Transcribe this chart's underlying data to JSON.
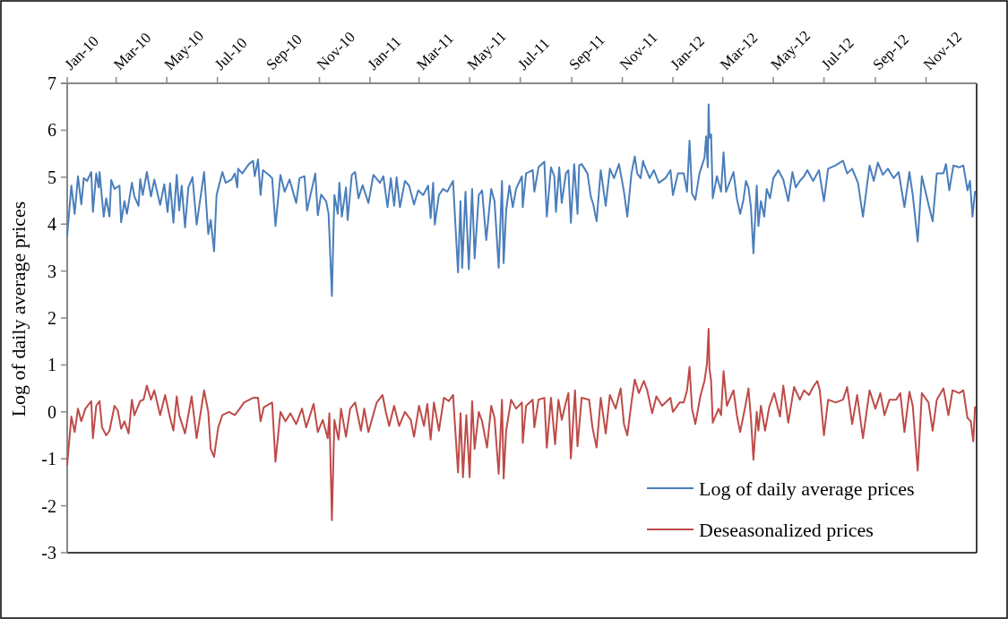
{
  "chart_data": {
    "type": "line",
    "ylabel": "Log of daily average prices",
    "xlim": [
      "2010-01-01",
      "2013-01-01"
    ],
    "ylim": [
      -3,
      7
    ],
    "yticks": [
      -3,
      -2,
      -1,
      0,
      1,
      2,
      3,
      4,
      5,
      6,
      7
    ],
    "xticks": [
      {
        "value": "2010-01-01",
        "label": "Jan-10"
      },
      {
        "value": "2010-03-01",
        "label": "Mar-10"
      },
      {
        "value": "2010-05-01",
        "label": "May-10"
      },
      {
        "value": "2010-07-01",
        "label": "Jul-10"
      },
      {
        "value": "2010-09-01",
        "label": "Sep-10"
      },
      {
        "value": "2010-11-01",
        "label": "Nov-10"
      },
      {
        "value": "2011-01-01",
        "label": "Jan-11"
      },
      {
        "value": "2011-03-01",
        "label": "Mar-11"
      },
      {
        "value": "2011-05-01",
        "label": "May-11"
      },
      {
        "value": "2011-07-01",
        "label": "Jul-11"
      },
      {
        "value": "2011-09-01",
        "label": "Sep-11"
      },
      {
        "value": "2011-11-01",
        "label": "Nov-11"
      },
      {
        "value": "2012-01-01",
        "label": "Jan-12"
      },
      {
        "value": "2012-03-01",
        "label": "Mar-12"
      },
      {
        "value": "2012-05-01",
        "label": "May-12"
      },
      {
        "value": "2012-07-01",
        "label": "Jul-12"
      },
      {
        "value": "2012-09-01",
        "label": "Sep-12"
      },
      {
        "value": "2012-11-01",
        "label": "Nov-12"
      }
    ],
    "legend": "bottom right",
    "line_style": "solid",
    "series": [
      {
        "name": "Log of daily average prices",
        "color": "#4a7ebb",
        "x": [
          "2010-01-01",
          "2010-01-06",
          "2010-01-10",
          "2010-01-14",
          "2010-01-18",
          "2010-01-21",
          "2010-01-25",
          "2010-01-30",
          "2010-02-01",
          "2010-02-05",
          "2010-02-08",
          "2010-02-09",
          "2010-02-14",
          "2010-02-17",
          "2010-02-21",
          "2010-02-23",
          "2010-02-27",
          "2010-03-05",
          "2010-03-07",
          "2010-03-11",
          "2010-03-14",
          "2010-03-20",
          "2010-03-23",
          "2010-03-28",
          "2010-03-30",
          "2010-04-02",
          "2010-04-07",
          "2010-04-12",
          "2010-04-16",
          "2010-04-23",
          "2010-04-28",
          "2010-05-02",
          "2010-05-05",
          "2010-05-09",
          "2010-05-13",
          "2010-05-16",
          "2010-05-19",
          "2010-05-23",
          "2010-05-27",
          "2010-06-01",
          "2010-06-06",
          "2010-06-15",
          "2010-06-20",
          "2010-06-23",
          "2010-06-27",
          "2010-06-30",
          "2010-07-07",
          "2010-07-11",
          "2010-07-18",
          "2010-07-22",
          "2010-07-25",
          "2010-07-26",
          "2010-07-31",
          "2010-08-08",
          "2010-08-13",
          "2010-08-15",
          "2010-08-19",
          "2010-08-22",
          "2010-08-25",
          "2010-09-01",
          "2010-09-05",
          "2010-09-09",
          "2010-09-15",
          "2010-09-20",
          "2010-09-26",
          "2010-10-04",
          "2010-10-08",
          "2010-10-14",
          "2010-10-17",
          "2010-10-27",
          "2010-10-30",
          "2010-11-03",
          "2010-11-09",
          "2010-11-12",
          "2010-11-16",
          "2010-11-19",
          "2010-11-23",
          "2010-11-25",
          "2010-11-28",
          "2010-12-03",
          "2010-12-05",
          "2010-12-10",
          "2010-12-14",
          "2010-12-18",
          "2010-12-23",
          "2010-12-30",
          "2011-01-05",
          "2011-01-13",
          "2011-01-17",
          "2011-01-22",
          "2011-01-26",
          "2011-01-30",
          "2011-02-02",
          "2011-02-06",
          "2011-02-12",
          "2011-02-17",
          "2011-02-23",
          "2011-02-28",
          "2011-03-06",
          "2011-03-12",
          "2011-03-15",
          "2011-03-18",
          "2011-03-20",
          "2011-03-25",
          "2011-03-30",
          "2011-04-04",
          "2011-04-11",
          "2011-04-17",
          "2011-04-20",
          "2011-04-22",
          "2011-04-26",
          "2011-04-30",
          "2011-05-04",
          "2011-05-07",
          "2011-05-12",
          "2011-05-16",
          "2011-05-21",
          "2011-05-27",
          "2011-05-31",
          "2011-06-05",
          "2011-06-09",
          "2011-06-11",
          "2011-06-14",
          "2011-06-18",
          "2011-06-22",
          "2011-06-26",
          "2011-07-03",
          "2011-07-04",
          "2011-07-08",
          "2011-07-16",
          "2011-07-18",
          "2011-07-23",
          "2011-07-30",
          "2011-08-02",
          "2011-08-07",
          "2011-08-11",
          "2011-08-13",
          "2011-08-17",
          "2011-08-20",
          "2011-08-25",
          "2011-08-28",
          "2011-08-31",
          "2011-09-04",
          "2011-09-08",
          "2011-09-10",
          "2011-09-13",
          "2011-09-20",
          "2011-09-24",
          "2011-09-27",
          "2011-10-01",
          "2011-10-06",
          "2011-10-12",
          "2011-10-17",
          "2011-10-22",
          "2011-10-28",
          "2011-11-03",
          "2011-11-07",
          "2011-11-12",
          "2011-11-16",
          "2011-11-19",
          "2011-11-23",
          "2011-11-26",
          "2011-11-27",
          "2011-12-04",
          "2011-12-09",
          "2011-12-15",
          "2011-12-23",
          "2011-12-29",
          "2012-01-01",
          "2012-01-07",
          "2012-01-14",
          "2012-01-18",
          "2012-01-21",
          "2012-01-24",
          "2012-01-28",
          "2012-02-02",
          "2012-02-08",
          "2012-02-10",
          "2012-02-12",
          "2012-02-13",
          "2012-02-14",
          "2012-02-16",
          "2012-02-18",
          "2012-02-23",
          "2012-02-28",
          "2012-03-02",
          "2012-03-05",
          "2012-03-14",
          "2012-03-18",
          "2012-03-22",
          "2012-03-26",
          "2012-03-29",
          "2012-04-01",
          "2012-04-04",
          "2012-04-07",
          "2012-04-11",
          "2012-04-13",
          "2012-04-16",
          "2012-04-20",
          "2012-04-23",
          "2012-04-27",
          "2012-05-01",
          "2012-05-07",
          "2012-05-13",
          "2012-05-19",
          "2012-05-24",
          "2012-05-28",
          "2012-06-02",
          "2012-06-07",
          "2012-06-11",
          "2012-06-18",
          "2012-06-25",
          "2012-07-01",
          "2012-07-06",
          "2012-07-15",
          "2012-07-24",
          "2012-07-29",
          "2012-08-04",
          "2012-08-11",
          "2012-08-17",
          "2012-08-25",
          "2012-08-30",
          "2012-09-04",
          "2012-09-10",
          "2012-09-16",
          "2012-09-23",
          "2012-09-29",
          "2012-10-06",
          "2012-10-12",
          "2012-10-16",
          "2012-10-22",
          "2012-10-27",
          "2012-11-04",
          "2012-11-09",
          "2012-11-14",
          "2012-11-22",
          "2012-11-25",
          "2012-11-29",
          "2012-12-04",
          "2012-12-11",
          "2012-12-16",
          "2012-12-21",
          "2012-12-24",
          "2012-12-27",
          "2012-12-30"
        ],
        "values": [
          3.76,
          4.82,
          4.22,
          5.02,
          4.42,
          4.98,
          4.92,
          5.11,
          4.26,
          5.08,
          4.78,
          5.11,
          4.16,
          4.55,
          4.16,
          4.94,
          4.75,
          4.82,
          4.04,
          4.49,
          4.22,
          4.88,
          4.59,
          4.39,
          4.96,
          4.62,
          5.11,
          4.59,
          4.95,
          4.41,
          4.85,
          4.26,
          4.87,
          4.03,
          5.05,
          4.29,
          4.82,
          3.93,
          4.78,
          5.0,
          3.99,
          5.11,
          3.79,
          4.09,
          3.42,
          4.62,
          5.11,
          4.88,
          4.95,
          5.08,
          4.78,
          5.18,
          5.08,
          5.28,
          5.35,
          5.02,
          5.38,
          4.62,
          5.15,
          5.05,
          4.98,
          3.96,
          5.05,
          4.69,
          4.95,
          4.45,
          4.98,
          5.02,
          4.29,
          5.08,
          4.19,
          4.63,
          4.49,
          4.22,
          2.47,
          4.62,
          4.22,
          4.88,
          4.16,
          4.78,
          4.09,
          5.05,
          5.11,
          4.55,
          4.83,
          4.45,
          5.05,
          4.88,
          5.02,
          4.36,
          4.98,
          4.39,
          5.0,
          4.36,
          4.92,
          4.82,
          4.42,
          4.72,
          4.62,
          4.82,
          4.13,
          4.88,
          3.99,
          4.62,
          4.75,
          4.69,
          4.92,
          2.97,
          4.49,
          3.07,
          4.69,
          3.04,
          4.75,
          3.27,
          4.62,
          4.72,
          3.66,
          4.75,
          4.49,
          3.07,
          4.92,
          3.17,
          4.29,
          4.82,
          4.36,
          4.75,
          5.02,
          4.36,
          5.08,
          5.15,
          4.69,
          5.21,
          5.33,
          4.16,
          5.21,
          5.02,
          4.26,
          5.21,
          4.45,
          5.08,
          5.15,
          4.03,
          5.28,
          4.22,
          5.25,
          5.28,
          5.08,
          4.59,
          4.42,
          4.06,
          5.15,
          4.39,
          5.18,
          4.98,
          5.28,
          4.69,
          4.16,
          5.08,
          5.44,
          5.08,
          4.98,
          5.35,
          5.28,
          4.98,
          5.15,
          4.88,
          4.98,
          5.15,
          4.62,
          5.08,
          5.08,
          4.69,
          5.78,
          4.65,
          4.52,
          5.08,
          5.41,
          5.87,
          5.21,
          6.55,
          5.84,
          5.91,
          4.55,
          5.02,
          4.69,
          5.53,
          4.69,
          5.11,
          4.55,
          4.22,
          4.52,
          4.92,
          4.78,
          4.36,
          3.38,
          4.82,
          3.96,
          4.49,
          4.16,
          4.75,
          4.55,
          4.98,
          5.15,
          4.95,
          4.49,
          5.11,
          4.78,
          4.92,
          5.02,
          5.15,
          4.92,
          5.15,
          4.49,
          5.18,
          5.25,
          5.35,
          5.08,
          5.18,
          4.88,
          4.16,
          5.25,
          4.92,
          5.31,
          5.05,
          5.18,
          4.98,
          5.11,
          4.36,
          5.11,
          4.62,
          3.63,
          5.02,
          4.42,
          4.06,
          5.08,
          5.08,
          5.28,
          4.72,
          5.25,
          5.21,
          5.25,
          4.72,
          4.92,
          4.16,
          4.69
        ]
      },
      {
        "name": "Deseasonalized prices",
        "color": "#be4b48",
        "x": [
          "2010-01-01",
          "2010-01-06",
          "2010-01-10",
          "2010-01-14",
          "2010-01-18",
          "2010-01-23",
          "2010-01-30",
          "2010-02-01",
          "2010-02-05",
          "2010-02-09",
          "2010-02-12",
          "2010-02-17",
          "2010-02-21",
          "2010-02-27",
          "2010-03-03",
          "2010-03-07",
          "2010-03-11",
          "2010-03-16",
          "2010-03-20",
          "2010-03-23",
          "2010-03-30",
          "2010-04-03",
          "2010-04-07",
          "2010-04-12",
          "2010-04-16",
          "2010-04-23",
          "2010-04-29",
          "2010-05-05",
          "2010-05-09",
          "2010-05-13",
          "2010-05-16",
          "2010-05-23",
          "2010-05-31",
          "2010-06-06",
          "2010-06-15",
          "2010-06-20",
          "2010-06-23",
          "2010-06-27",
          "2010-07-02",
          "2010-07-07",
          "2010-07-15",
          "2010-07-22",
          "2010-07-28",
          "2010-08-02",
          "2010-08-13",
          "2010-08-19",
          "2010-08-22",
          "2010-08-26",
          "2010-09-05",
          "2010-09-09",
          "2010-09-15",
          "2010-09-21",
          "2010-09-27",
          "2010-10-04",
          "2010-10-11",
          "2010-10-16",
          "2010-10-25",
          "2010-10-30",
          "2010-11-05",
          "2010-11-11",
          "2010-11-13",
          "2010-11-16",
          "2010-11-19",
          "2010-11-24",
          "2010-11-27",
          "2010-12-03",
          "2010-12-08",
          "2010-12-14",
          "2010-12-21",
          "2010-12-25",
          "2010-12-30",
          "2011-01-09",
          "2011-01-16",
          "2011-01-20",
          "2011-01-24",
          "2011-01-30",
          "2011-02-05",
          "2011-02-12",
          "2011-02-19",
          "2011-02-23",
          "2011-03-01",
          "2011-03-07",
          "2011-03-11",
          "2011-03-15",
          "2011-03-19",
          "2011-03-25",
          "2011-03-31",
          "2011-04-06",
          "2011-04-11",
          "2011-04-17",
          "2011-04-20",
          "2011-04-23",
          "2011-04-27",
          "2011-05-01",
          "2011-05-04",
          "2011-05-07",
          "2011-05-12",
          "2011-05-16",
          "2011-05-22",
          "2011-05-27",
          "2011-05-31",
          "2011-06-05",
          "2011-06-09",
          "2011-06-11",
          "2011-06-14",
          "2011-06-20",
          "2011-06-26",
          "2011-07-03",
          "2011-07-04",
          "2011-07-08",
          "2011-07-16",
          "2011-07-18",
          "2011-07-23",
          "2011-07-30",
          "2011-08-02",
          "2011-08-07",
          "2011-08-12",
          "2011-08-16",
          "2011-08-20",
          "2011-08-25",
          "2011-08-28",
          "2011-08-31",
          "2011-09-05",
          "2011-09-08",
          "2011-09-13",
          "2011-09-22",
          "2011-09-26",
          "2011-10-01",
          "2011-10-06",
          "2011-10-12",
          "2011-10-17",
          "2011-10-24",
          "2011-10-30",
          "2011-11-03",
          "2011-11-07",
          "2011-11-12",
          "2011-11-16",
          "2011-11-21",
          "2011-11-27",
          "2011-12-01",
          "2011-12-07",
          "2011-12-12",
          "2011-12-19",
          "2011-12-29",
          "2012-01-01",
          "2012-01-09",
          "2012-01-14",
          "2012-01-18",
          "2012-01-21",
          "2012-01-24",
          "2012-01-28",
          "2012-02-03",
          "2012-02-08",
          "2012-02-11",
          "2012-02-13",
          "2012-02-14",
          "2012-02-16",
          "2012-02-18",
          "2012-02-25",
          "2012-02-28",
          "2012-03-02",
          "2012-03-06",
          "2012-03-14",
          "2012-03-18",
          "2012-03-22",
          "2012-03-28",
          "2012-04-01",
          "2012-04-04",
          "2012-04-07",
          "2012-04-11",
          "2012-04-13",
          "2012-04-16",
          "2012-04-21",
          "2012-04-26",
          "2012-05-02",
          "2012-05-09",
          "2012-05-13",
          "2012-05-19",
          "2012-05-26",
          "2012-06-02",
          "2012-06-07",
          "2012-06-13",
          "2012-06-18",
          "2012-06-23",
          "2012-06-26",
          "2012-07-01",
          "2012-07-06",
          "2012-07-15",
          "2012-07-24",
          "2012-07-29",
          "2012-08-04",
          "2012-08-10",
          "2012-08-17",
          "2012-08-25",
          "2012-09-01",
          "2012-09-07",
          "2012-09-12",
          "2012-09-18",
          "2012-09-26",
          "2012-10-01",
          "2012-10-06",
          "2012-10-12",
          "2012-10-16",
          "2012-10-22",
          "2012-10-27",
          "2012-11-04",
          "2012-11-09",
          "2012-11-14",
          "2012-11-22",
          "2012-11-28",
          "2012-12-03",
          "2012-12-11",
          "2012-12-16",
          "2012-12-21",
          "2012-12-25",
          "2012-12-28",
          "2012-12-30"
        ],
        "values": [
          -1.12,
          -0.1,
          -0.43,
          0.07,
          -0.2,
          0.07,
          0.23,
          -0.56,
          0.13,
          0.23,
          -0.33,
          -0.5,
          -0.4,
          0.13,
          0.03,
          -0.36,
          -0.2,
          -0.46,
          0.26,
          -0.07,
          0.23,
          0.26,
          0.56,
          0.26,
          0.46,
          -0.07,
          0.36,
          -0.13,
          -0.4,
          0.33,
          -0.07,
          -0.46,
          0.33,
          -0.56,
          0.46,
          0.0,
          -0.79,
          -0.96,
          -0.33,
          -0.07,
          0.0,
          -0.07,
          0.07,
          0.2,
          0.3,
          0.3,
          -0.2,
          0.1,
          0.2,
          -1.06,
          0.0,
          -0.2,
          -0.03,
          -0.26,
          0.07,
          -0.33,
          0.17,
          -0.43,
          -0.17,
          -0.56,
          -0.03,
          -2.31,
          -0.17,
          -0.59,
          0.07,
          -0.53,
          0.07,
          0.2,
          -0.4,
          0.07,
          -0.43,
          0.2,
          0.36,
          0.0,
          -0.3,
          0.13,
          -0.3,
          0.0,
          -0.17,
          -0.53,
          0.13,
          -0.3,
          0.17,
          -0.59,
          0.2,
          -0.4,
          0.3,
          0.23,
          0.36,
          -1.29,
          -0.03,
          -1.39,
          -0.07,
          -1.39,
          0.23,
          -0.79,
          0.0,
          -0.2,
          -0.76,
          0.13,
          -0.13,
          -1.32,
          0.26,
          -1.42,
          -0.4,
          0.26,
          0.07,
          0.2,
          -0.66,
          0.13,
          0.26,
          -0.33,
          0.26,
          0.3,
          -0.76,
          0.3,
          -0.69,
          0.26,
          -0.17,
          0.2,
          0.4,
          -0.99,
          0.46,
          -0.73,
          0.3,
          0.26,
          -0.33,
          -0.76,
          0.3,
          -0.46,
          0.36,
          0.07,
          0.5,
          -0.26,
          -0.5,
          0.2,
          0.69,
          0.4,
          0.66,
          0.46,
          -0.03,
          0.33,
          0.13,
          0.3,
          0.0,
          0.2,
          0.2,
          0.46,
          0.96,
          0.07,
          -0.26,
          0.33,
          0.66,
          1.02,
          1.77,
          0.92,
          0.66,
          -0.23,
          0.07,
          -0.07,
          0.87,
          0.13,
          0.46,
          -0.07,
          -0.43,
          0.1,
          0.5,
          -0.13,
          -1.02,
          0.0,
          -0.4,
          0.13,
          -0.4,
          0.1,
          0.4,
          -0.1,
          0.56,
          -0.23,
          0.53,
          0.26,
          0.46,
          0.36,
          0.53,
          0.66,
          0.46,
          -0.5,
          0.26,
          0.2,
          0.26,
          0.53,
          -0.26,
          0.36,
          -0.56,
          0.46,
          0.07,
          0.4,
          -0.07,
          0.26,
          0.26,
          0.4,
          -0.43,
          0.43,
          0.13,
          -1.25,
          0.4,
          0.2,
          -0.4,
          0.26,
          0.5,
          -0.07,
          0.46,
          0.4,
          0.46,
          -0.13,
          -0.2,
          -0.63,
          0.1
        ]
      }
    ]
  }
}
